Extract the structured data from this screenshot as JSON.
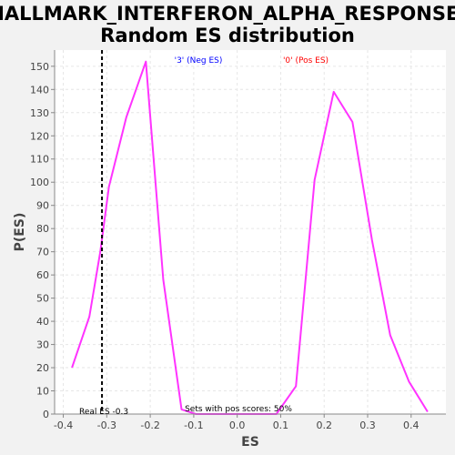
{
  "chart_data": {
    "type": "line",
    "title_line1": "HALLMARK_INTERFERON_ALPHA_RESPONSE:",
    "title_line2": "Random ES distribution",
    "xlabel": "ES",
    "ylabel": "P(ES)",
    "xlim": [
      -0.42,
      0.48
    ],
    "ylim": [
      0,
      157
    ],
    "x_ticks": [
      -0.4,
      -0.3,
      -0.2,
      -0.1,
      0.0,
      0.1,
      0.2,
      0.3,
      0.4
    ],
    "x_tick_labels": [
      "-0.4",
      "-0.3",
      "-0.2",
      "-0.1",
      "0.0",
      "0.1",
      "0.2",
      "0.3",
      "0.4"
    ],
    "y_ticks": [
      0,
      10,
      20,
      30,
      40,
      50,
      60,
      70,
      80,
      90,
      100,
      110,
      120,
      130,
      140,
      150
    ],
    "y_tick_labels": [
      "0",
      "10",
      "20",
      "30",
      "40",
      "50",
      "60",
      "70",
      "80",
      "90",
      "100",
      "110",
      "120",
      "130",
      "140",
      "150"
    ],
    "grid": true,
    "series": [
      {
        "color": "#ff33ff",
        "x": [
          -0.38,
          -0.34,
          -0.315,
          -0.295,
          -0.255,
          -0.21,
          -0.17,
          -0.128,
          -0.095,
          0.0,
          0.09,
          0.135,
          0.178,
          0.222,
          0.265,
          0.31,
          0.352,
          0.395,
          0.438
        ],
        "y": [
          20,
          42,
          70,
          98,
          128,
          152,
          58,
          2,
          0,
          0,
          0,
          12,
          101,
          139,
          126,
          75,
          34,
          14,
          1
        ]
      }
    ],
    "real_es": {
      "value": -0.311,
      "label": "Real ES -0.3",
      "color": "#000000"
    },
    "annotations": [
      {
        "text": "'3' (Neg ES)",
        "color": "#0000ff"
      },
      {
        "text": "'0' (Pos ES)",
        "color": "#ff0000"
      },
      {
        "text": "Sets with pos scores: 50%",
        "color": "#000000"
      }
    ]
  }
}
